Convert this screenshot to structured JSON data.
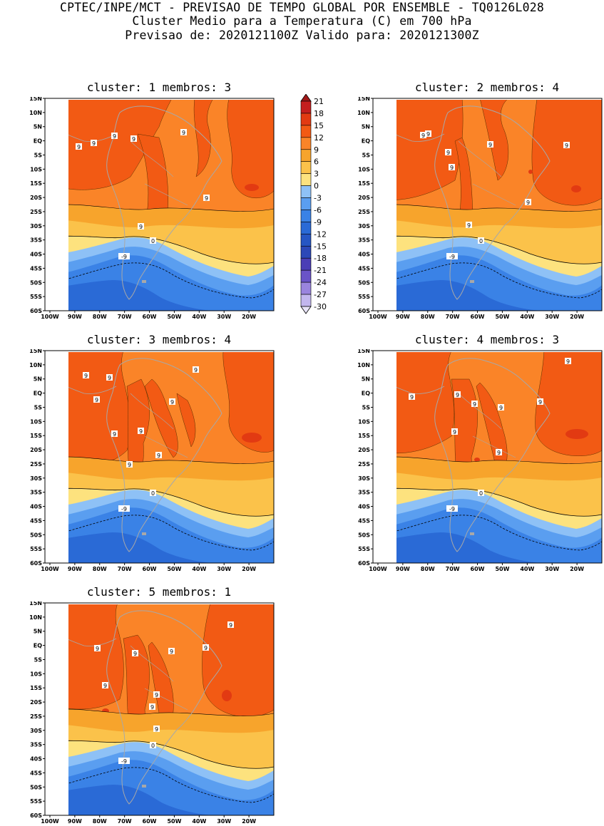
{
  "header": {
    "line1": "CPTEC/INPE/MCT - PREVISAO DE TEMPO GLOBAL POR ENSEMBLE - TQ0126L028",
    "line2": "Cluster Medio para a Temperatura (C) em 700 hPa",
    "line3": "Previsao de: 2020121100Z    Valido para: 2020121300Z"
  },
  "panels": [
    {
      "title": "cluster: 1   membros: 3"
    },
    {
      "title": "cluster: 2   membros: 4"
    },
    {
      "title": "cluster: 3   membros: 4"
    },
    {
      "title": "cluster: 4   membros: 3"
    },
    {
      "title": "cluster: 5   membros: 1"
    }
  ],
  "axes": {
    "lat_labels": [
      "15N",
      "10N",
      "5N",
      "EQ",
      "5S",
      "10S",
      "15S",
      "20S",
      "25S",
      "30S",
      "35S",
      "40S",
      "45S",
      "50S",
      "55S",
      "60S"
    ],
    "lon_labels": [
      "100W",
      "90W",
      "80W",
      "70W",
      "60W",
      "50W",
      "40W",
      "30W",
      "20W"
    ]
  },
  "colorbar": {
    "labels": [
      "21",
      "18",
      "15",
      "12",
      "9",
      "6",
      "3",
      "0",
      "-3",
      "-6",
      "-9",
      "-12",
      "-15",
      "-18",
      "-21",
      "-24",
      "-27",
      "-30"
    ],
    "colors": [
      "#a01818",
      "#c41e1e",
      "#e23a12",
      "#f25a14",
      "#fa8428",
      "#f7a42c",
      "#fbc24a",
      "#fde27e",
      "#8ec1f6",
      "#5a9ef0",
      "#3a82e6",
      "#2a6ad6",
      "#2656c4",
      "#2c48b8",
      "#4a3eb6",
      "#6a54c8",
      "#9a84de",
      "#c2b6ee",
      "#e8e4f8"
    ]
  },
  "contour_labels": [
    "9",
    "0",
    "-9"
  ],
  "colors": {
    "orange_dark": "#f25a14",
    "orange_mid": "#fa8428",
    "orange_light": "#f7a42c",
    "yellow": "#fbc24a",
    "pale_yellow": "#fde27e",
    "light_blue": "#8ec1f6",
    "mid_blue": "#5a9ef0",
    "blue": "#3a82e6",
    "deep_blue": "#2a6ad6",
    "land_line": "#a8a8a8"
  }
}
